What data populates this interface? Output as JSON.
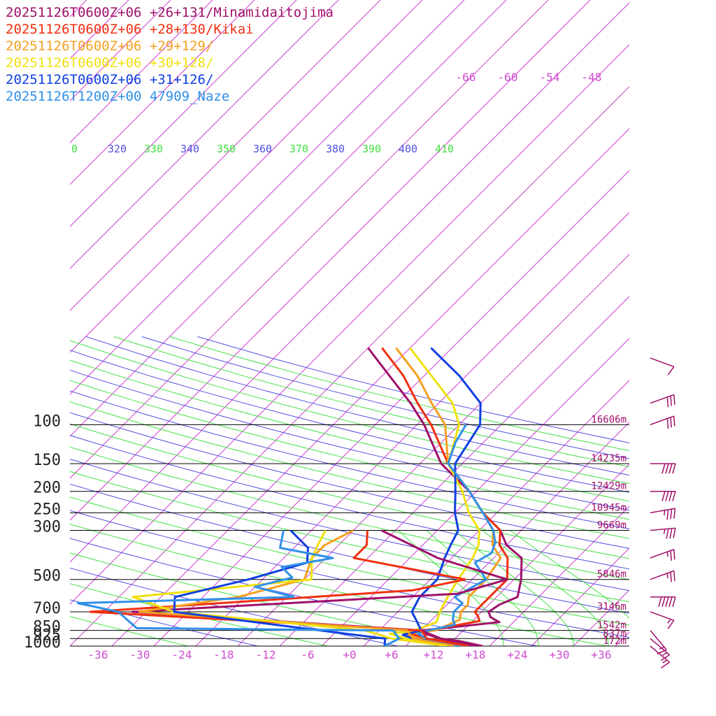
{
  "legend": [
    {
      "label": "20251126T0600Z+06 +26+131/Minamidaitojima",
      "color": "#a0106a"
    },
    {
      "label": "20251126T0600Z+06 +28+130/Kikai",
      "color": "#f03010"
    },
    {
      "label": "20251126T0600Z+06 +29+129/",
      "color": "#f5a020"
    },
    {
      "label": "20251126T0600Z+06 +30+128/",
      "color": "#f0e010"
    },
    {
      "label": "20251126T0600Z+06 +31+126/",
      "color": "#1040e0"
    },
    {
      "label": "20251126T1200Z+00 47909_Naze",
      "color": "#3090e8"
    }
  ],
  "chart_data": {
    "type": "line",
    "title": "",
    "xlabel": "",
    "ylabel": "",
    "xlim": [
      -40,
      40
    ],
    "pressure_levels": [
      {
        "label": "100",
        "p": 100,
        "height": "16606m"
      },
      {
        "label": "150",
        "p": 150,
        "height": "14235m"
      },
      {
        "label": "200",
        "p": 200,
        "height": "12429m"
      },
      {
        "label": "250",
        "p": 250,
        "height": "10945m"
      },
      {
        "label": "300",
        "p": 300,
        "height": "9669m"
      },
      {
        "label": "500",
        "p": 500,
        "height": "5846m"
      },
      {
        "label": "700",
        "p": 700,
        "height": "3146m"
      },
      {
        "label": "850",
        "p": 850,
        "height": "1542m"
      },
      {
        "label": "925",
        "p": 925,
        "height": "837m"
      },
      {
        "label": "1000",
        "p": 1000,
        "height": "172m"
      }
    ],
    "x_ticks": [
      "-36",
      "-30",
      "-24",
      "-18",
      "-12",
      "-6",
      "+0",
      "+6",
      "+12",
      "+18",
      "+24",
      "+30",
      "+36"
    ],
    "upper_temp_labels": [
      "-66",
      "-60",
      "-54",
      "-48"
    ],
    "theta_labels": [
      {
        "text": "0",
        "color": "#40e040"
      },
      {
        "text": "320",
        "color": "#5050e0"
      },
      {
        "text": "330",
        "color": "#40e040"
      },
      {
        "text": "340",
        "color": "#5050e0"
      },
      {
        "text": "350",
        "color": "#40e040"
      },
      {
        "text": "360",
        "color": "#5050e0"
      },
      {
        "text": "370",
        "color": "#40e040"
      },
      {
        "text": "380",
        "color": "#5050e0"
      },
      {
        "text": "390",
        "color": "#40e040"
      },
      {
        "text": "400",
        "color": "#5050e0"
      },
      {
        "text": "410",
        "color": "#40e040"
      }
    ],
    "series": [
      {
        "name": "20251126T0600Z+06 +26+131/Minamidaitojima",
        "color": "#a0106a",
        "points": [
          {
            "t": 19,
            "p": 1000
          },
          {
            "t": 15,
            "p": 950
          },
          {
            "t": 12,
            "p": 925
          },
          {
            "t": 9,
            "p": 880
          },
          {
            "t": 8,
            "p": 850
          },
          {
            "t": 18,
            "p": 780
          },
          {
            "t": 16,
            "p": 740
          },
          {
            "t": 15,
            "p": 700
          },
          {
            "t": 15.5,
            "p": 650
          },
          {
            "t": 17,
            "p": 600
          },
          {
            "t": 15,
            "p": 500
          },
          {
            "t": 12,
            "p": 400
          },
          {
            "t": 8,
            "p": 350
          },
          {
            "t": 5,
            "p": 300
          },
          {
            "t": 0,
            "p": 250
          },
          {
            "t": -5,
            "p": 200
          },
          {
            "t": -13,
            "p": 150
          },
          {
            "t": -21,
            "p": 100
          },
          {
            "t": -26,
            "p": 80
          },
          {
            "t": -33,
            "p": 60
          },
          {
            "t": -40,
            "p": 45
          }
        ]
      },
      {
        "name": "20251126T0600Z+06 +28+130/Kikai",
        "color": "#f03010",
        "points": [
          {
            "t": 18,
            "p": 1000
          },
          {
            "t": 13,
            "p": 950
          },
          {
            "t": 10,
            "p": 925
          },
          {
            "t": 7,
            "p": 880
          },
          {
            "t": 9,
            "p": 850
          },
          {
            "t": 15,
            "p": 770
          },
          {
            "t": 14,
            "p": 730
          },
          {
            "t": 13,
            "p": 700
          },
          {
            "t": 13,
            "p": 650
          },
          {
            "t": 13,
            "p": 600
          },
          {
            "t": 13,
            "p": 500
          },
          {
            "t": 10,
            "p": 400
          },
          {
            "t": 7,
            "p": 350
          },
          {
            "t": 5,
            "p": 300
          },
          {
            "t": 0,
            "p": 250
          },
          {
            "t": -5,
            "p": 200
          },
          {
            "t": -12,
            "p": 150
          },
          {
            "t": -20,
            "p": 100
          },
          {
            "t": -25,
            "p": 80
          },
          {
            "t": -31,
            "p": 60
          },
          {
            "t": -38,
            "p": 45
          }
        ]
      },
      {
        "name": "20251126T0600Z+06 +29+129/",
        "color": "#f5a020",
        "points": [
          {
            "t": 17,
            "p": 1000
          },
          {
            "t": 12,
            "p": 950
          },
          {
            "t": 9,
            "p": 925
          },
          {
            "t": 6,
            "p": 880
          },
          {
            "t": 10,
            "p": 850
          },
          {
            "t": 12,
            "p": 760
          },
          {
            "t": 11,
            "p": 700
          },
          {
            "t": 11,
            "p": 650
          },
          {
            "t": 10,
            "p": 600
          },
          {
            "t": 10,
            "p": 500
          },
          {
            "t": 9,
            "p": 400
          },
          {
            "t": 6,
            "p": 350
          },
          {
            "t": 4,
            "p": 300
          },
          {
            "t": 0,
            "p": 250
          },
          {
            "t": -5,
            "p": 200
          },
          {
            "t": -12,
            "p": 150
          },
          {
            "t": -18,
            "p": 100
          },
          {
            "t": -23,
            "p": 80
          },
          {
            "t": -29,
            "p": 60
          },
          {
            "t": -36,
            "p": 45
          }
        ]
      },
      {
        "name": "20251126T0600Z+06 +30+128/",
        "color": "#f0e010",
        "points": [
          {
            "t": 16,
            "p": 1000
          },
          {
            "t": 10,
            "p": 950
          },
          {
            "t": 7,
            "p": 925
          },
          {
            "t": 4,
            "p": 880
          },
          {
            "t": 7,
            "p": 850
          },
          {
            "t": 9,
            "p": 780
          },
          {
            "t": 8,
            "p": 700
          },
          {
            "t": 7,
            "p": 600
          },
          {
            "t": 6,
            "p": 500
          },
          {
            "t": 5,
            "p": 400
          },
          {
            "t": 4,
            "p": 350
          },
          {
            "t": 2,
            "p": 300
          },
          {
            "t": -2,
            "p": 250
          },
          {
            "t": -6,
            "p": 200
          },
          {
            "t": -12,
            "p": 150
          },
          {
            "t": -16,
            "p": 100
          },
          {
            "t": -20,
            "p": 80
          },
          {
            "t": -27,
            "p": 60
          },
          {
            "t": -34,
            "p": 45
          }
        ]
      },
      {
        "name": "20251126T0600Z+06 +31+126/",
        "color": "#1040e0",
        "points": [
          {
            "t": 14,
            "p": 1000
          },
          {
            "t": 11,
            "p": 950
          },
          {
            "t": 8,
            "p": 925
          },
          {
            "t": 6,
            "p": 890
          },
          {
            "t": 8,
            "p": 850
          },
          {
            "t": 6,
            "p": 770
          },
          {
            "t": 4,
            "p": 700
          },
          {
            "t": 3,
            "p": 600
          },
          {
            "t": 3,
            "p": 500
          },
          {
            "t": 1,
            "p": 400
          },
          {
            "t": 0,
            "p": 350
          },
          {
            "t": -1,
            "p": 300
          },
          {
            "t": -4,
            "p": 250
          },
          {
            "t": -7,
            "p": 200
          },
          {
            "t": -11,
            "p": 150
          },
          {
            "t": -13,
            "p": 100
          },
          {
            "t": -16,
            "p": 80
          },
          {
            "t": -23,
            "p": 60
          },
          {
            "t": -31,
            "p": 45
          }
        ]
      },
      {
        "name": "20251126T1200Z+00 47909_Naze",
        "color": "#3090e8",
        "points": [
          {
            "t": 16,
            "p": 1000
          },
          {
            "t": 12,
            "p": 960
          },
          {
            "t": 10,
            "p": 925
          },
          {
            "t": 8,
            "p": 880
          },
          {
            "t": 9,
            "p": 850
          },
          {
            "t": 12,
            "p": 800
          },
          {
            "t": 11,
            "p": 760
          },
          {
            "t": 10,
            "p": 700
          },
          {
            "t": 10,
            "p": 640
          },
          {
            "t": 8,
            "p": 600
          },
          {
            "t": 10,
            "p": 500
          },
          {
            "t": 6,
            "p": 420
          },
          {
            "t": 7,
            "p": 380
          },
          {
            "t": 6,
            "p": 340
          },
          {
            "t": 4,
            "p": 300
          },
          {
            "t": 0,
            "p": 250
          },
          {
            "t": -5,
            "p": 200
          },
          {
            "t": -12,
            "p": 150
          },
          {
            "t": -14,
            "p": 120
          },
          {
            "t": -15,
            "p": 100
          }
        ]
      }
    ],
    "dewpoint_series": [
      {
        "color": "#a0106a",
        "points": [
          {
            "t": 18,
            "p": 1000
          },
          {
            "t": 12,
            "p": 925
          },
          {
            "t": 8,
            "p": 850
          },
          {
            "t": -36,
            "p": 700
          },
          {
            "t": 8,
            "p": 580
          },
          {
            "t": 13,
            "p": 500
          },
          {
            "t": 0,
            "p": 400
          },
          {
            "t": -12,
            "p": 300
          }
        ]
      },
      {
        "color": "#f03010",
        "points": [
          {
            "t": 17,
            "p": 1000
          },
          {
            "t": 10,
            "p": 925
          },
          {
            "t": 8,
            "p": 850
          },
          {
            "t": -42,
            "p": 700
          },
          {
            "t": 1,
            "p": 560
          },
          {
            "t": 7,
            "p": 500
          },
          {
            "t": -12,
            "p": 400
          },
          {
            "t": -12,
            "p": 350
          },
          {
            "t": -14,
            "p": 300
          }
        ]
      },
      {
        "color": "#f5a020",
        "points": [
          {
            "t": 15,
            "p": 1000
          },
          {
            "t": 8,
            "p": 925
          },
          {
            "t": 6,
            "p": 850
          },
          {
            "t": -35,
            "p": 700
          },
          {
            "t": -23,
            "p": 600
          },
          {
            "t": -16,
            "p": 500
          },
          {
            "t": -18,
            "p": 400
          },
          {
            "t": -18,
            "p": 350
          },
          {
            "t": -16,
            "p": 300
          }
        ]
      },
      {
        "color": "#f0e010",
        "points": [
          {
            "t": 14,
            "p": 1000
          },
          {
            "t": 5,
            "p": 925
          },
          {
            "t": 0,
            "p": 850
          },
          {
            "t": -30,
            "p": 700
          },
          {
            "t": -38,
            "p": 600
          },
          {
            "t": -15,
            "p": 500
          },
          {
            "t": -18,
            "p": 400
          },
          {
            "t": -19,
            "p": 350
          },
          {
            "t": -20,
            "p": 300
          }
        ]
      },
      {
        "color": "#1040e0",
        "points": [
          {
            "t": 5,
            "p": 1000
          },
          {
            "t": 4,
            "p": 925
          },
          {
            "t": -5,
            "p": 860
          },
          {
            "t": -30,
            "p": 700
          },
          {
            "t": -32,
            "p": 600
          },
          {
            "t": -24,
            "p": 500
          },
          {
            "t": -18,
            "p": 420
          },
          {
            "t": -20,
            "p": 360
          },
          {
            "t": -25,
            "p": 300
          }
        ]
      },
      {
        "color": "#3090e8",
        "points": [
          {
            "t": 5,
            "p": 1000
          },
          {
            "t": 6,
            "p": 925
          },
          {
            "t": 4,
            "p": 850
          },
          {
            "t": -15,
            "p": 840
          },
          {
            "t": -33,
            "p": 830
          },
          {
            "t": -38,
            "p": 700
          },
          {
            "t": -45,
            "p": 640
          },
          {
            "t": -15,
            "p": 600
          },
          {
            "t": -22,
            "p": 540
          },
          {
            "t": -18,
            "p": 490
          },
          {
            "t": -21,
            "p": 440
          },
          {
            "t": -15,
            "p": 400
          },
          {
            "t": -24,
            "p": 360
          },
          {
            "t": -26,
            "p": 300
          }
        ]
      }
    ],
    "wind_barbs": [
      {
        "p": 50,
        "dir": 290,
        "speed": 10
      },
      {
        "p": 80,
        "dir": 250,
        "speed": 30
      },
      {
        "p": 100,
        "dir": 250,
        "speed": 30
      },
      {
        "p": 150,
        "dir": 270,
        "speed": 40
      },
      {
        "p": 200,
        "dir": 270,
        "speed": 40
      },
      {
        "p": 250,
        "dir": 260,
        "speed": 35
      },
      {
        "p": 300,
        "dir": 265,
        "speed": 35
      },
      {
        "p": 400,
        "dir": 250,
        "speed": 25
      },
      {
        "p": 500,
        "dir": 250,
        "speed": 25
      },
      {
        "p": 600,
        "dir": 270,
        "speed": 50
      },
      {
        "p": 700,
        "dir": 290,
        "speed": 15
      },
      {
        "p": 850,
        "dir": 320,
        "speed": 15
      },
      {
        "p": 925,
        "dir": 310,
        "speed": 15
      },
      {
        "p": 1000,
        "dir": 310,
        "speed": 15
      }
    ]
  }
}
